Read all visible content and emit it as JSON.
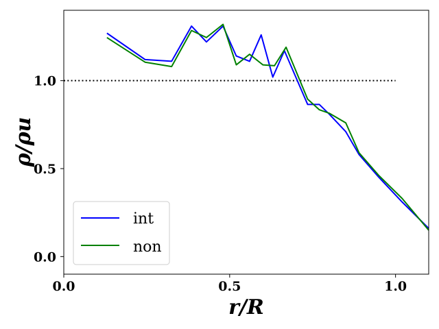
{
  "chart_data": {
    "type": "line",
    "xlabel": "r/R",
    "ylabel": "ρ/ρu",
    "xlim": [
      0.0,
      1.1
    ],
    "ylim": [
      -0.1,
      1.4
    ],
    "xticks": [
      0.0,
      0.5,
      1.0
    ],
    "yticks": [
      0.0,
      0.5,
      1.0
    ],
    "xtick_labels": [
      "0.0",
      "0.5",
      "1.0"
    ],
    "ytick_labels": [
      "0.0",
      "0.5",
      "1.0"
    ],
    "grid": false,
    "legend_position": "lower-left",
    "reference_line": {
      "y": 1.0,
      "x_range": [
        0.0,
        1.0
      ],
      "style": "dotted",
      "color": "#000000"
    },
    "series": [
      {
        "name": "int",
        "color": "#0000ff",
        "x": [
          0.13,
          0.245,
          0.325,
          0.385,
          0.43,
          0.48,
          0.52,
          0.56,
          0.595,
          0.63,
          0.665,
          0.735,
          0.77,
          0.8,
          0.85,
          0.89,
          0.95,
          1.02,
          1.1
        ],
        "y": [
          1.27,
          1.12,
          1.11,
          1.31,
          1.22,
          1.31,
          1.14,
          1.11,
          1.26,
          1.02,
          1.17,
          0.865,
          0.865,
          0.81,
          0.71,
          0.58,
          0.45,
          0.31,
          0.16
        ]
      },
      {
        "name": "non",
        "color": "#008000",
        "x": [
          0.13,
          0.245,
          0.325,
          0.385,
          0.43,
          0.48,
          0.52,
          0.56,
          0.6,
          0.635,
          0.67,
          0.735,
          0.77,
          0.8,
          0.85,
          0.89,
          0.95,
          1.02,
          1.1
        ],
        "y": [
          1.245,
          1.105,
          1.08,
          1.285,
          1.245,
          1.32,
          1.09,
          1.15,
          1.09,
          1.085,
          1.19,
          0.895,
          0.835,
          0.815,
          0.76,
          0.59,
          0.46,
          0.33,
          0.15
        ]
      }
    ]
  }
}
